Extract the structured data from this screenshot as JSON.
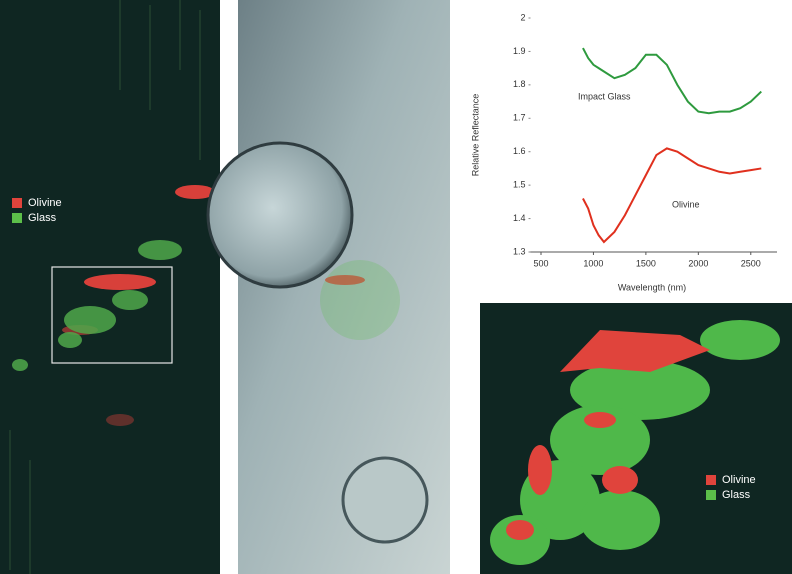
{
  "chart_data": {
    "type": "line",
    "x_label": "Wavelength (nm)",
    "y_label": "Relative Reflectance",
    "x": [
      900,
      950,
      1000,
      1050,
      1100,
      1200,
      1300,
      1400,
      1500,
      1600,
      1700,
      1800,
      1900,
      2000,
      2100,
      2200,
      2300,
      2400,
      2500,
      2600
    ],
    "series": [
      {
        "name": "Impact Glass",
        "color": "#2e9a3e",
        "values": [
          1.91,
          1.88,
          1.86,
          1.85,
          1.84,
          1.82,
          1.83,
          1.85,
          1.89,
          1.89,
          1.86,
          1.8,
          1.75,
          1.72,
          1.715,
          1.72,
          1.72,
          1.73,
          1.75,
          1.78
        ]
      },
      {
        "name": "Olivine",
        "color": "#e0301e",
        "values": [
          1.46,
          1.43,
          1.38,
          1.35,
          1.33,
          1.36,
          1.41,
          1.47,
          1.53,
          1.59,
          1.61,
          1.6,
          1.58,
          1.56,
          1.55,
          1.54,
          1.535,
          1.54,
          1.545,
          1.55
        ]
      }
    ],
    "xlim": [
      400,
      2750
    ],
    "xticks": [
      500,
      1000,
      1500,
      2000,
      2500
    ],
    "ylim": [
      1.3,
      2
    ],
    "yticks": [
      1.3,
      1.4,
      1.5,
      1.6,
      1.7,
      1.8,
      1.9,
      2
    ]
  },
  "overview_map": {
    "legend": [
      {
        "label": "Olivine",
        "color": "#e0443c"
      },
      {
        "label": "Glass",
        "color": "#5cbf4a"
      }
    ]
  },
  "detail_map": {
    "legend": [
      {
        "label": "Olivine",
        "color": "#e0443c"
      },
      {
        "label": "Glass",
        "color": "#5cbf4a"
      }
    ]
  }
}
